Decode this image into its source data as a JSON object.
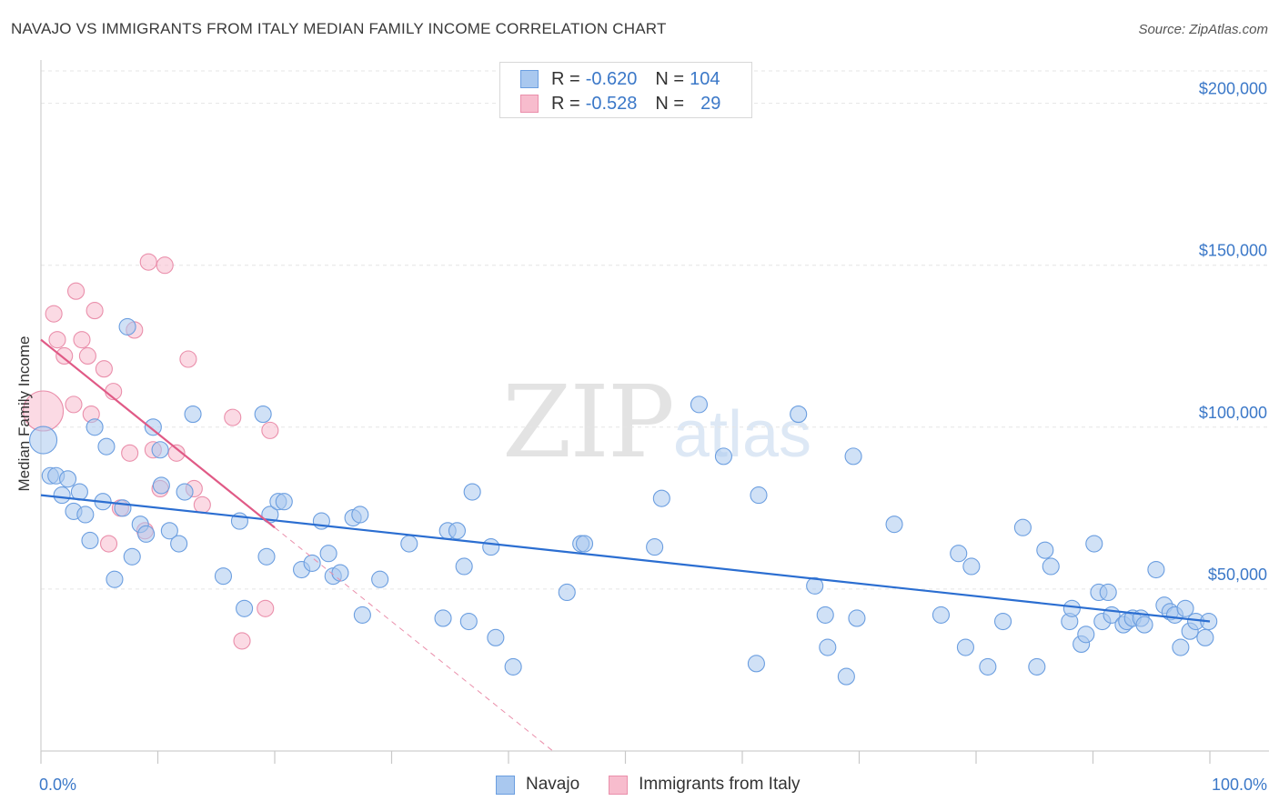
{
  "title": "NAVAJO VS IMMIGRANTS FROM ITALY MEDIAN FAMILY INCOME CORRELATION CHART",
  "source": "Source: ZipAtlas.com",
  "watermark": {
    "zip": "ZIP",
    "atlas": "atlas"
  },
  "legend": {
    "rows": [
      {
        "r_label": "R = ",
        "r_value": "-0.620",
        "n_label": "N = ",
        "n_value": "104"
      },
      {
        "r_label": "R = ",
        "r_value": "-0.528",
        "n_label": "N = ",
        "n_value": "29"
      }
    ]
  },
  "colors": {
    "navajo_fill": "#a9c8ef",
    "navajo_stroke": "#6b9ee0",
    "navajo_line": "#2b6ed1",
    "italy_fill": "#f7bccd",
    "italy_stroke": "#ea8fab",
    "italy_line": "#e05a86",
    "grid": "#e5e5e5",
    "tick_text": "#3b78c8"
  },
  "chart_data": {
    "type": "scatter",
    "title": "NAVAJO VS IMMIGRANTS FROM ITALY MEDIAN FAMILY INCOME CORRELATION CHART",
    "xlabel": "",
    "ylabel": "Median Family Income",
    "x_unit": "percent",
    "xlim": [
      0,
      100
    ],
    "ylim": [
      0,
      210000
    ],
    "x_tick_labels": [
      "0.0%",
      "100.0%"
    ],
    "y_ticks": [
      50000,
      100000,
      150000,
      200000
    ],
    "y_tick_labels": [
      "$50,000",
      "$100,000",
      "$150,000",
      "$200,000"
    ],
    "grid": true,
    "legend_position": "top-center",
    "series": [
      {
        "name": "Navajo",
        "r": -0.62,
        "n": 104,
        "trend": {
          "x": [
            0,
            100
          ],
          "y": [
            79000,
            40000
          ]
        },
        "points": [
          [
            0.2,
            96000
          ],
          [
            0.8,
            85000
          ],
          [
            1.3,
            85000
          ],
          [
            1.8,
            79000
          ],
          [
            2.3,
            84000
          ],
          [
            2.8,
            74000
          ],
          [
            3.3,
            80000
          ],
          [
            3.8,
            73000
          ],
          [
            4.2,
            65000
          ],
          [
            4.6,
            100000
          ],
          [
            5.3,
            77000
          ],
          [
            5.6,
            94000
          ],
          [
            6.3,
            53000
          ],
          [
            7.0,
            75000
          ],
          [
            7.4,
            131000
          ],
          [
            7.8,
            60000
          ],
          [
            8.5,
            70000
          ],
          [
            9.0,
            67000
          ],
          [
            9.6,
            100000
          ],
          [
            10.2,
            93000
          ],
          [
            10.3,
            82000
          ],
          [
            11.0,
            68000
          ],
          [
            11.8,
            64000
          ],
          [
            12.3,
            80000
          ],
          [
            13.0,
            104000
          ],
          [
            15.6,
            54000
          ],
          [
            17.0,
            71000
          ],
          [
            17.4,
            44000
          ],
          [
            19.0,
            104000
          ],
          [
            19.3,
            60000
          ],
          [
            19.6,
            73000
          ],
          [
            20.3,
            77000
          ],
          [
            20.8,
            77000
          ],
          [
            22.3,
            56000
          ],
          [
            23.2,
            58000
          ],
          [
            24.0,
            71000
          ],
          [
            24.6,
            61000
          ],
          [
            25.0,
            54000
          ],
          [
            25.6,
            55000
          ],
          [
            26.7,
            72000
          ],
          [
            27.3,
            73000
          ],
          [
            27.5,
            42000
          ],
          [
            29.0,
            53000
          ],
          [
            31.5,
            64000
          ],
          [
            34.4,
            41000
          ],
          [
            34.8,
            68000
          ],
          [
            35.6,
            68000
          ],
          [
            36.2,
            57000
          ],
          [
            36.6,
            40000
          ],
          [
            36.9,
            80000
          ],
          [
            38.5,
            63000
          ],
          [
            38.9,
            35000
          ],
          [
            40.4,
            26000
          ],
          [
            45.0,
            49000
          ],
          [
            46.2,
            64000
          ],
          [
            46.5,
            64000
          ],
          [
            52.5,
            63000
          ],
          [
            53.1,
            78000
          ],
          [
            56.3,
            107000
          ],
          [
            58.4,
            91000
          ],
          [
            61.2,
            27000
          ],
          [
            61.4,
            79000
          ],
          [
            64.8,
            104000
          ],
          [
            66.2,
            51000
          ],
          [
            67.1,
            42000
          ],
          [
            67.3,
            32000
          ],
          [
            68.9,
            23000
          ],
          [
            69.5,
            91000
          ],
          [
            69.8,
            41000
          ],
          [
            73.0,
            70000
          ],
          [
            77.0,
            42000
          ],
          [
            78.5,
            61000
          ],
          [
            79.1,
            32000
          ],
          [
            79.6,
            57000
          ],
          [
            81.0,
            26000
          ],
          [
            82.3,
            40000
          ],
          [
            84.0,
            69000
          ],
          [
            85.2,
            26000
          ],
          [
            85.9,
            62000
          ],
          [
            86.4,
            57000
          ],
          [
            88.0,
            40000
          ],
          [
            88.2,
            44000
          ],
          [
            89.0,
            33000
          ],
          [
            89.4,
            36000
          ],
          [
            90.1,
            64000
          ],
          [
            90.5,
            49000
          ],
          [
            90.8,
            40000
          ],
          [
            91.3,
            49000
          ],
          [
            91.6,
            42000
          ],
          [
            92.6,
            39000
          ],
          [
            92.9,
            40000
          ],
          [
            93.4,
            41000
          ],
          [
            94.1,
            41000
          ],
          [
            94.4,
            39000
          ],
          [
            95.4,
            56000
          ],
          [
            96.1,
            45000
          ],
          [
            96.6,
            43000
          ],
          [
            97.0,
            42000
          ],
          [
            97.5,
            32000
          ],
          [
            97.9,
            44000
          ],
          [
            98.3,
            37000
          ],
          [
            98.8,
            40000
          ],
          [
            99.6,
            35000
          ],
          [
            99.9,
            40000
          ]
        ]
      },
      {
        "name": "Immigrants from Italy",
        "r": -0.528,
        "n": 29,
        "trend": {
          "x": [
            0,
            20
          ],
          "y": [
            127000,
            69000
          ]
        },
        "points": [
          [
            0.2,
            105000
          ],
          [
            1.1,
            135000
          ],
          [
            1.4,
            127000
          ],
          [
            2.0,
            122000
          ],
          [
            2.8,
            107000
          ],
          [
            3.0,
            142000
          ],
          [
            3.5,
            127000
          ],
          [
            4.0,
            122000
          ],
          [
            4.3,
            104000
          ],
          [
            4.6,
            136000
          ],
          [
            5.4,
            118000
          ],
          [
            5.8,
            64000
          ],
          [
            6.2,
            111000
          ],
          [
            6.8,
            75000
          ],
          [
            7.6,
            92000
          ],
          [
            8.0,
            130000
          ],
          [
            8.9,
            68000
          ],
          [
            9.2,
            151000
          ],
          [
            9.6,
            93000
          ],
          [
            10.2,
            81000
          ],
          [
            10.6,
            150000
          ],
          [
            11.6,
            92000
          ],
          [
            12.6,
            121000
          ],
          [
            13.1,
            81000
          ],
          [
            13.8,
            76000
          ],
          [
            16.4,
            103000
          ],
          [
            17.2,
            34000
          ],
          [
            19.2,
            44000
          ],
          [
            19.6,
            99000
          ]
        ]
      }
    ]
  },
  "bottom_legend": {
    "items": [
      {
        "label": "Navajo"
      },
      {
        "label": "Immigrants from Italy"
      }
    ]
  }
}
